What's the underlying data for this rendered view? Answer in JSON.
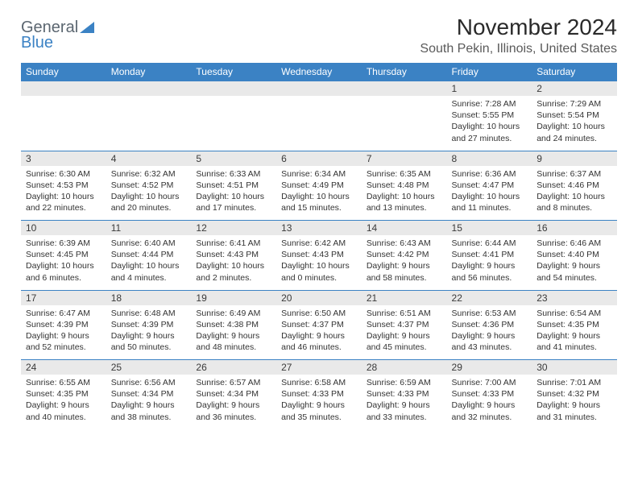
{
  "brand": {
    "text1": "General",
    "text2": "Blue",
    "accent_color": "#3b82c4",
    "muted_color": "#5b6670"
  },
  "title": "November 2024",
  "location": "South Pekin, Illinois, United States",
  "colors": {
    "header_bg": "#3b82c4",
    "header_text": "#ffffff",
    "daynum_bg": "#e9e9e9",
    "border": "#3b82c4",
    "body_text": "#333333",
    "title_text": "#2a2a2a"
  },
  "day_labels": [
    "Sunday",
    "Monday",
    "Tuesday",
    "Wednesday",
    "Thursday",
    "Friday",
    "Saturday"
  ],
  "weeks": [
    [
      null,
      null,
      null,
      null,
      null,
      {
        "n": "1",
        "sr": "Sunrise: 7:28 AM",
        "ss": "Sunset: 5:55 PM",
        "dl": "Daylight: 10 hours and 27 minutes."
      },
      {
        "n": "2",
        "sr": "Sunrise: 7:29 AM",
        "ss": "Sunset: 5:54 PM",
        "dl": "Daylight: 10 hours and 24 minutes."
      }
    ],
    [
      {
        "n": "3",
        "sr": "Sunrise: 6:30 AM",
        "ss": "Sunset: 4:53 PM",
        "dl": "Daylight: 10 hours and 22 minutes."
      },
      {
        "n": "4",
        "sr": "Sunrise: 6:32 AM",
        "ss": "Sunset: 4:52 PM",
        "dl": "Daylight: 10 hours and 20 minutes."
      },
      {
        "n": "5",
        "sr": "Sunrise: 6:33 AM",
        "ss": "Sunset: 4:51 PM",
        "dl": "Daylight: 10 hours and 17 minutes."
      },
      {
        "n": "6",
        "sr": "Sunrise: 6:34 AM",
        "ss": "Sunset: 4:49 PM",
        "dl": "Daylight: 10 hours and 15 minutes."
      },
      {
        "n": "7",
        "sr": "Sunrise: 6:35 AM",
        "ss": "Sunset: 4:48 PM",
        "dl": "Daylight: 10 hours and 13 minutes."
      },
      {
        "n": "8",
        "sr": "Sunrise: 6:36 AM",
        "ss": "Sunset: 4:47 PM",
        "dl": "Daylight: 10 hours and 11 minutes."
      },
      {
        "n": "9",
        "sr": "Sunrise: 6:37 AM",
        "ss": "Sunset: 4:46 PM",
        "dl": "Daylight: 10 hours and 8 minutes."
      }
    ],
    [
      {
        "n": "10",
        "sr": "Sunrise: 6:39 AM",
        "ss": "Sunset: 4:45 PM",
        "dl": "Daylight: 10 hours and 6 minutes."
      },
      {
        "n": "11",
        "sr": "Sunrise: 6:40 AM",
        "ss": "Sunset: 4:44 PM",
        "dl": "Daylight: 10 hours and 4 minutes."
      },
      {
        "n": "12",
        "sr": "Sunrise: 6:41 AM",
        "ss": "Sunset: 4:43 PM",
        "dl": "Daylight: 10 hours and 2 minutes."
      },
      {
        "n": "13",
        "sr": "Sunrise: 6:42 AM",
        "ss": "Sunset: 4:43 PM",
        "dl": "Daylight: 10 hours and 0 minutes."
      },
      {
        "n": "14",
        "sr": "Sunrise: 6:43 AM",
        "ss": "Sunset: 4:42 PM",
        "dl": "Daylight: 9 hours and 58 minutes."
      },
      {
        "n": "15",
        "sr": "Sunrise: 6:44 AM",
        "ss": "Sunset: 4:41 PM",
        "dl": "Daylight: 9 hours and 56 minutes."
      },
      {
        "n": "16",
        "sr": "Sunrise: 6:46 AM",
        "ss": "Sunset: 4:40 PM",
        "dl": "Daylight: 9 hours and 54 minutes."
      }
    ],
    [
      {
        "n": "17",
        "sr": "Sunrise: 6:47 AM",
        "ss": "Sunset: 4:39 PM",
        "dl": "Daylight: 9 hours and 52 minutes."
      },
      {
        "n": "18",
        "sr": "Sunrise: 6:48 AM",
        "ss": "Sunset: 4:39 PM",
        "dl": "Daylight: 9 hours and 50 minutes."
      },
      {
        "n": "19",
        "sr": "Sunrise: 6:49 AM",
        "ss": "Sunset: 4:38 PM",
        "dl": "Daylight: 9 hours and 48 minutes."
      },
      {
        "n": "20",
        "sr": "Sunrise: 6:50 AM",
        "ss": "Sunset: 4:37 PM",
        "dl": "Daylight: 9 hours and 46 minutes."
      },
      {
        "n": "21",
        "sr": "Sunrise: 6:51 AM",
        "ss": "Sunset: 4:37 PM",
        "dl": "Daylight: 9 hours and 45 minutes."
      },
      {
        "n": "22",
        "sr": "Sunrise: 6:53 AM",
        "ss": "Sunset: 4:36 PM",
        "dl": "Daylight: 9 hours and 43 minutes."
      },
      {
        "n": "23",
        "sr": "Sunrise: 6:54 AM",
        "ss": "Sunset: 4:35 PM",
        "dl": "Daylight: 9 hours and 41 minutes."
      }
    ],
    [
      {
        "n": "24",
        "sr": "Sunrise: 6:55 AM",
        "ss": "Sunset: 4:35 PM",
        "dl": "Daylight: 9 hours and 40 minutes."
      },
      {
        "n": "25",
        "sr": "Sunrise: 6:56 AM",
        "ss": "Sunset: 4:34 PM",
        "dl": "Daylight: 9 hours and 38 minutes."
      },
      {
        "n": "26",
        "sr": "Sunrise: 6:57 AM",
        "ss": "Sunset: 4:34 PM",
        "dl": "Daylight: 9 hours and 36 minutes."
      },
      {
        "n": "27",
        "sr": "Sunrise: 6:58 AM",
        "ss": "Sunset: 4:33 PM",
        "dl": "Daylight: 9 hours and 35 minutes."
      },
      {
        "n": "28",
        "sr": "Sunrise: 6:59 AM",
        "ss": "Sunset: 4:33 PM",
        "dl": "Daylight: 9 hours and 33 minutes."
      },
      {
        "n": "29",
        "sr": "Sunrise: 7:00 AM",
        "ss": "Sunset: 4:33 PM",
        "dl": "Daylight: 9 hours and 32 minutes."
      },
      {
        "n": "30",
        "sr": "Sunrise: 7:01 AM",
        "ss": "Sunset: 4:32 PM",
        "dl": "Daylight: 9 hours and 31 minutes."
      }
    ]
  ]
}
